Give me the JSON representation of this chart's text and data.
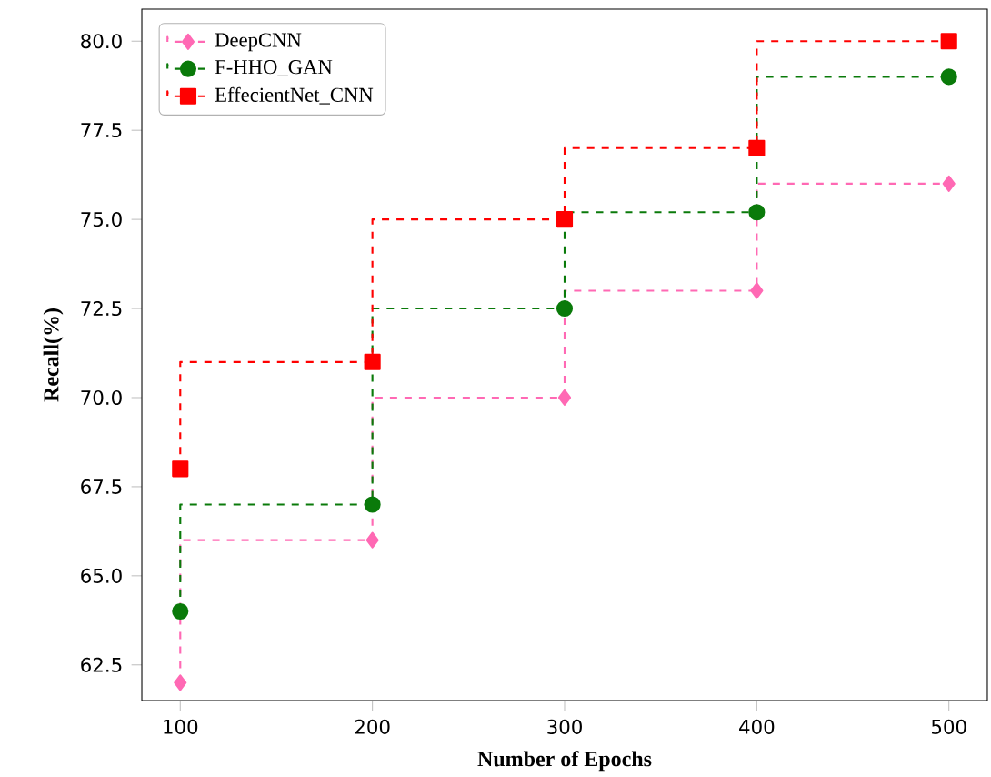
{
  "chart_data": {
    "type": "step",
    "xlabel": "Number of Epochs",
    "ylabel": "Recall(%)",
    "x": [
      100,
      200,
      300,
      400,
      500
    ],
    "series": [
      {
        "name": "DeepCNN",
        "color": "#ff69b4",
        "marker": "diamond",
        "values": [
          62,
          66,
          70,
          73,
          76
        ]
      },
      {
        "name": "F-HHO_GAN",
        "color": "#0a7a0a",
        "marker": "circle",
        "values": [
          64,
          67,
          72.5,
          75.2,
          79
        ]
      },
      {
        "name": "EffecientNet_CNN",
        "color": "#ff0000",
        "marker": "square",
        "values": [
          68,
          71,
          75,
          77,
          80
        ]
      }
    ],
    "xlim": [
      80,
      520
    ],
    "ylim": [
      61.5,
      80.9
    ],
    "xticks": [
      100,
      200,
      300,
      400,
      500
    ],
    "yticks": [
      {
        "value": 62.5,
        "label": "62.5"
      },
      {
        "value": 65,
        "label": "65.0"
      },
      {
        "value": 67.5,
        "label": "67.5"
      },
      {
        "value": 70,
        "label": "70.0"
      },
      {
        "value": 72.5,
        "label": "72.5"
      },
      {
        "value": 75,
        "label": "75.0"
      },
      {
        "value": 77.5,
        "label": "77.5"
      },
      {
        "value": 80,
        "label": "80.0"
      }
    ],
    "legend": "top left",
    "line_style": "dashed",
    "grid": false
  }
}
